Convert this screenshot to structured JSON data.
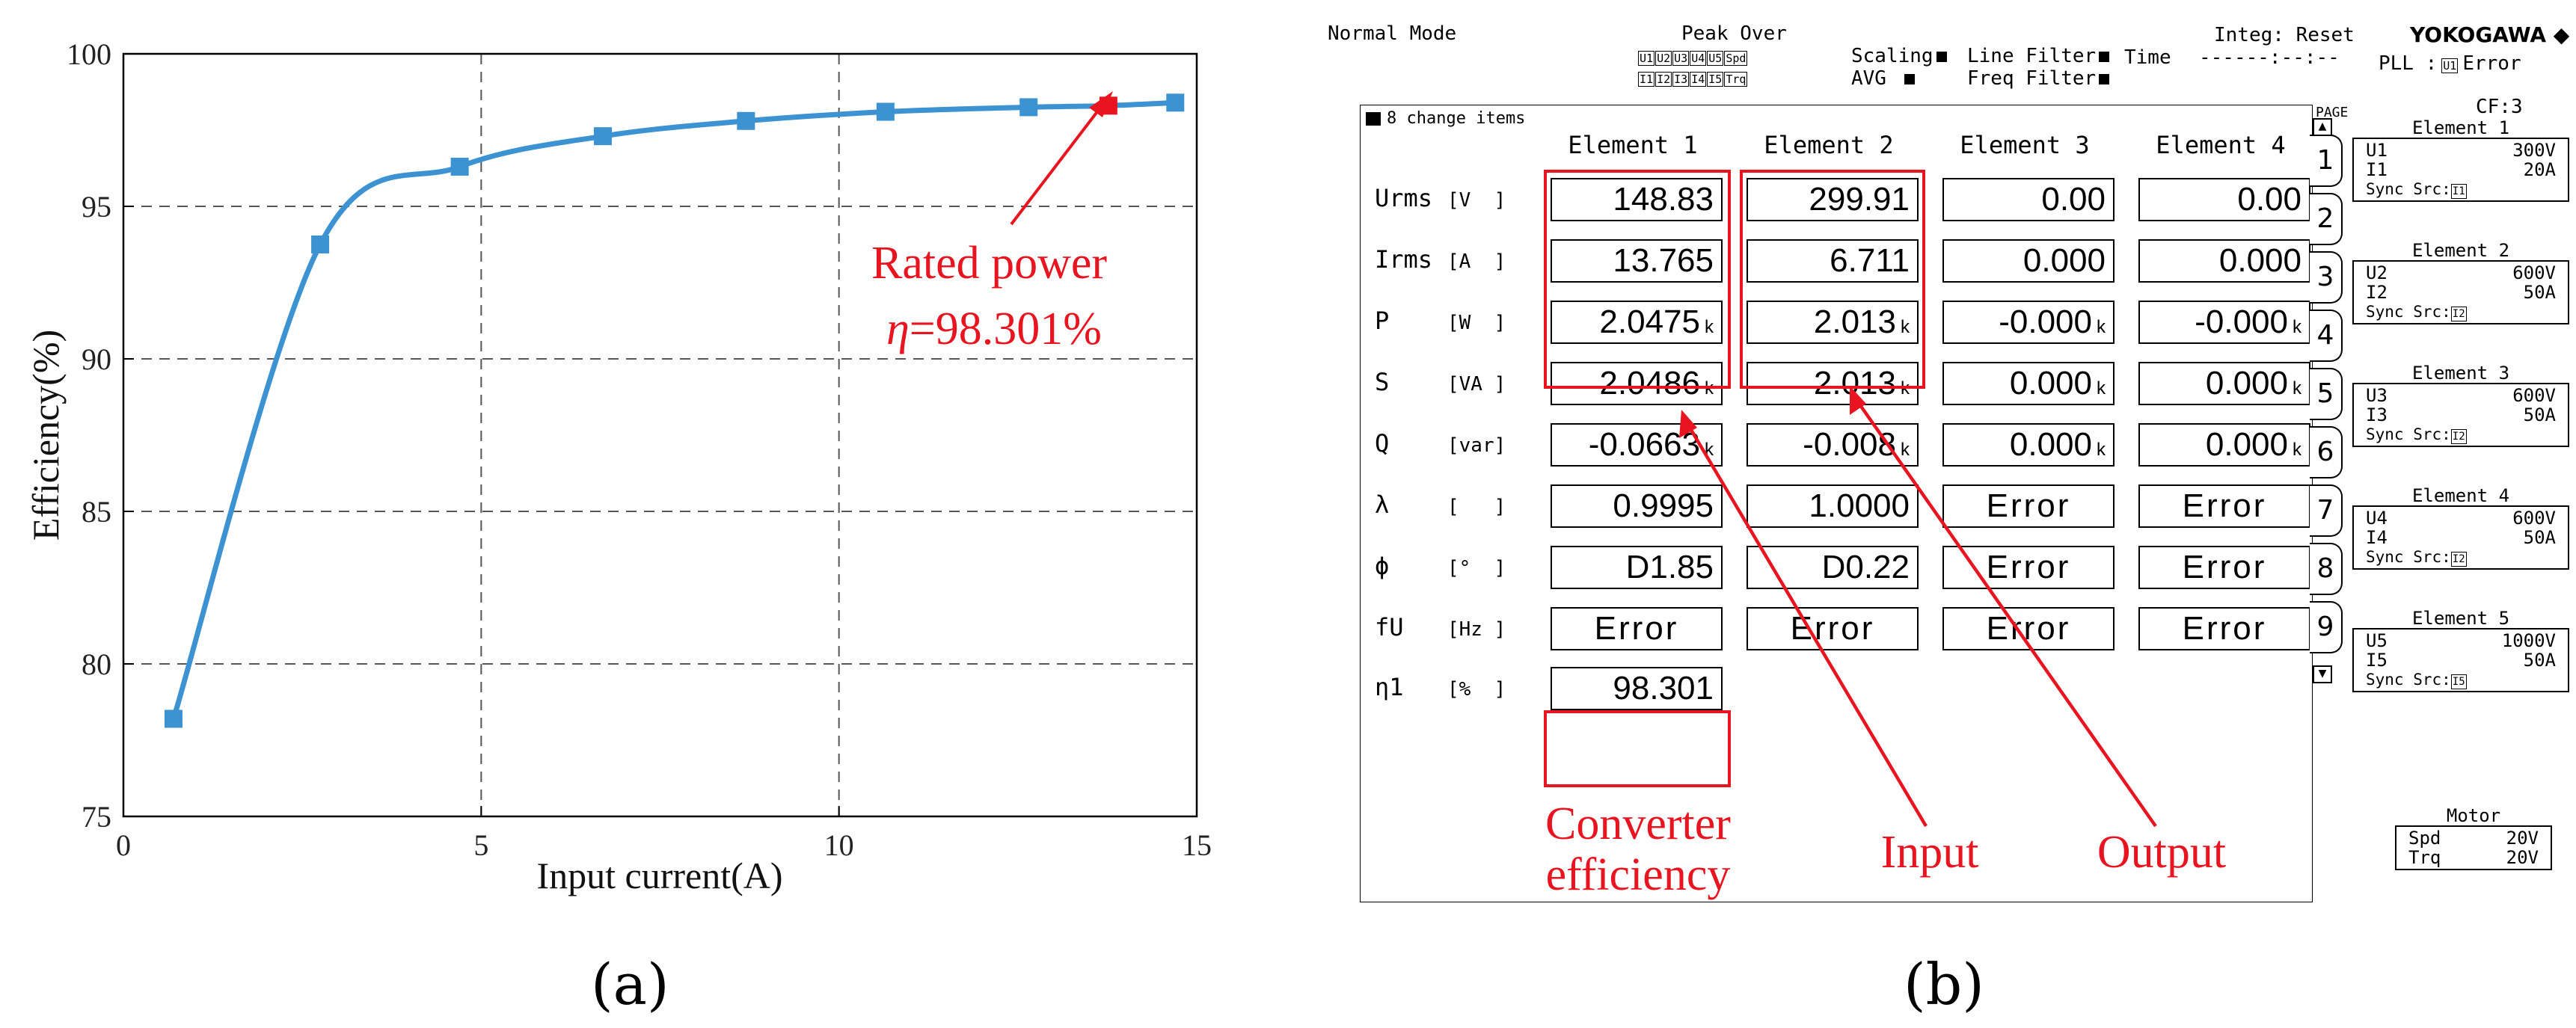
{
  "chart_data": {
    "type": "line",
    "x": [
      0.7,
      2.75,
      4.7,
      6.7,
      8.7,
      10.65,
      12.65,
      13.765,
      14.7
    ],
    "y": [
      78.2,
      93.75,
      96.3,
      97.3,
      97.8,
      98.1,
      98.25,
      98.301,
      98.4
    ],
    "highlight_index": 7,
    "xlabel": "Input current(A)",
    "ylabel": "Efficiency(%)",
    "xlim": [
      0,
      15
    ],
    "ylim": [
      75,
      100
    ],
    "xticks": [
      "0",
      "5",
      "10",
      "15"
    ],
    "yticks": [
      "75",
      "80",
      "85",
      "90",
      "95",
      "100"
    ],
    "grid": true,
    "line_color": "#3d93d1",
    "highlight_color": "#e8141f",
    "annotation": {
      "line1": "Rated power",
      "symbol": "η",
      "line2": "=98.301%"
    }
  },
  "captions": {
    "a": "(a)",
    "b": "(b)"
  },
  "meter": {
    "header": {
      "mode": "Normal Mode",
      "peak_over": "Peak Over",
      "peak_chips_row1": [
        "U1",
        "U2",
        "U3",
        "U4",
        "U5",
        "Spd"
      ],
      "peak_chips_row2": [
        "I1",
        "I2",
        "I3",
        "I4",
        "I5",
        "Trq"
      ],
      "scaling": "Scaling",
      "avg": "AVG",
      "line_filter": "Line Filter",
      "freq_filter": "Freq Filter",
      "time_label": "Time",
      "integ": "Integ: Reset",
      "time_value": "------:--:--",
      "brand": "YOKOGAWA ◆",
      "pll_label": "PLL :",
      "pll_chip": "U1",
      "pll_value": "Error",
      "cf": "CF:3",
      "page": "PAGE"
    },
    "items_label": "8 change items",
    "columns": [
      "Element 1",
      "Element 2",
      "Element 3",
      "Element 4"
    ],
    "rows": [
      {
        "label": "Urms",
        "unit": "[V  ]",
        "cells": [
          {
            "v": "148.83",
            "k": ""
          },
          {
            "v": "299.91",
            "k": ""
          },
          {
            "v": "0.00",
            "k": ""
          },
          {
            "v": "0.00",
            "k": ""
          }
        ]
      },
      {
        "label": "Irms",
        "unit": "[A  ]",
        "cells": [
          {
            "v": "13.765",
            "k": ""
          },
          {
            "v": "6.711",
            "k": ""
          },
          {
            "v": "0.000",
            "k": ""
          },
          {
            "v": "0.000",
            "k": ""
          }
        ]
      },
      {
        "label": "P",
        "unit": "[W  ]",
        "cells": [
          {
            "v": "2.0475",
            "k": "k"
          },
          {
            "v": "2.013",
            "k": "k"
          },
          {
            "v": "-0.000",
            "k": "k"
          },
          {
            "v": "-0.000",
            "k": "k"
          }
        ]
      },
      {
        "label": "S",
        "unit": "[VA ]",
        "cells": [
          {
            "v": "2.0486",
            "k": "k"
          },
          {
            "v": "2.013",
            "k": "k"
          },
          {
            "v": "0.000",
            "k": "k"
          },
          {
            "v": "0.000",
            "k": "k"
          }
        ]
      },
      {
        "label": "Q",
        "unit": "[var]",
        "cells": [
          {
            "v": "-0.0663",
            "k": "k"
          },
          {
            "v": "-0.008",
            "k": "k"
          },
          {
            "v": "0.000",
            "k": "k"
          },
          {
            "v": "0.000",
            "k": "k"
          }
        ]
      },
      {
        "label": "λ",
        "unit": "[   ]",
        "cells": [
          {
            "v": "0.9995",
            "k": ""
          },
          {
            "v": "1.0000",
            "k": ""
          },
          {
            "v": "Error",
            "k": ""
          },
          {
            "v": "Error",
            "k": ""
          }
        ]
      },
      {
        "label": "ϕ",
        "unit": "[°  ]",
        "cells": [
          {
            "v": "D1.85",
            "k": ""
          },
          {
            "v": "D0.22",
            "k": ""
          },
          {
            "v": "Error",
            "k": ""
          },
          {
            "v": "Error",
            "k": ""
          }
        ]
      },
      {
        "label": "fU",
        "unit": "[Hz ]",
        "cells": [
          {
            "v": "Error",
            "k": ""
          },
          {
            "v": "Error",
            "k": ""
          },
          {
            "v": "Error",
            "k": ""
          },
          {
            "v": "Error",
            "k": ""
          }
        ]
      },
      {
        "label": "η1",
        "unit": "[%  ]",
        "cells": [
          {
            "v": "98.301",
            "k": ""
          }
        ]
      }
    ],
    "tabs": [
      "1",
      "2",
      "3",
      "4",
      "5",
      "6",
      "7",
      "8",
      "9"
    ],
    "elements": [
      {
        "title": "Element 1",
        "u": "U1",
        "u_range": "300V",
        "i": "I1",
        "i_range": "20A",
        "sync": "Sync Src:",
        "sync_chip": "I1"
      },
      {
        "title": "Element 2",
        "u": "U2",
        "u_range": "600V",
        "i": "I2",
        "i_range": "50A",
        "sync": "Sync Src:",
        "sync_chip": "I2"
      },
      {
        "title": "Element 3",
        "u": "U3",
        "u_range": "600V",
        "i": "I3",
        "i_range": "50A",
        "sync": "Sync Src:",
        "sync_chip": "I2"
      },
      {
        "title": "Element 4",
        "u": "U4",
        "u_range": "600V",
        "i": "I4",
        "i_range": "50A",
        "sync": "Sync Src:",
        "sync_chip": "I2"
      },
      {
        "title": "Element 5",
        "u": "U5",
        "u_range": "1000V",
        "i": "I5",
        "i_range": "50A",
        "sync": "Sync Src:",
        "sync_chip": "I5"
      }
    ],
    "motor": {
      "title": "Motor",
      "spd": "Spd",
      "spd_range": "20V",
      "trq": "Trq",
      "trq_range": "20V"
    },
    "annotations": {
      "converter": "Converter efficiency",
      "input": "Input",
      "output": "Output"
    }
  }
}
